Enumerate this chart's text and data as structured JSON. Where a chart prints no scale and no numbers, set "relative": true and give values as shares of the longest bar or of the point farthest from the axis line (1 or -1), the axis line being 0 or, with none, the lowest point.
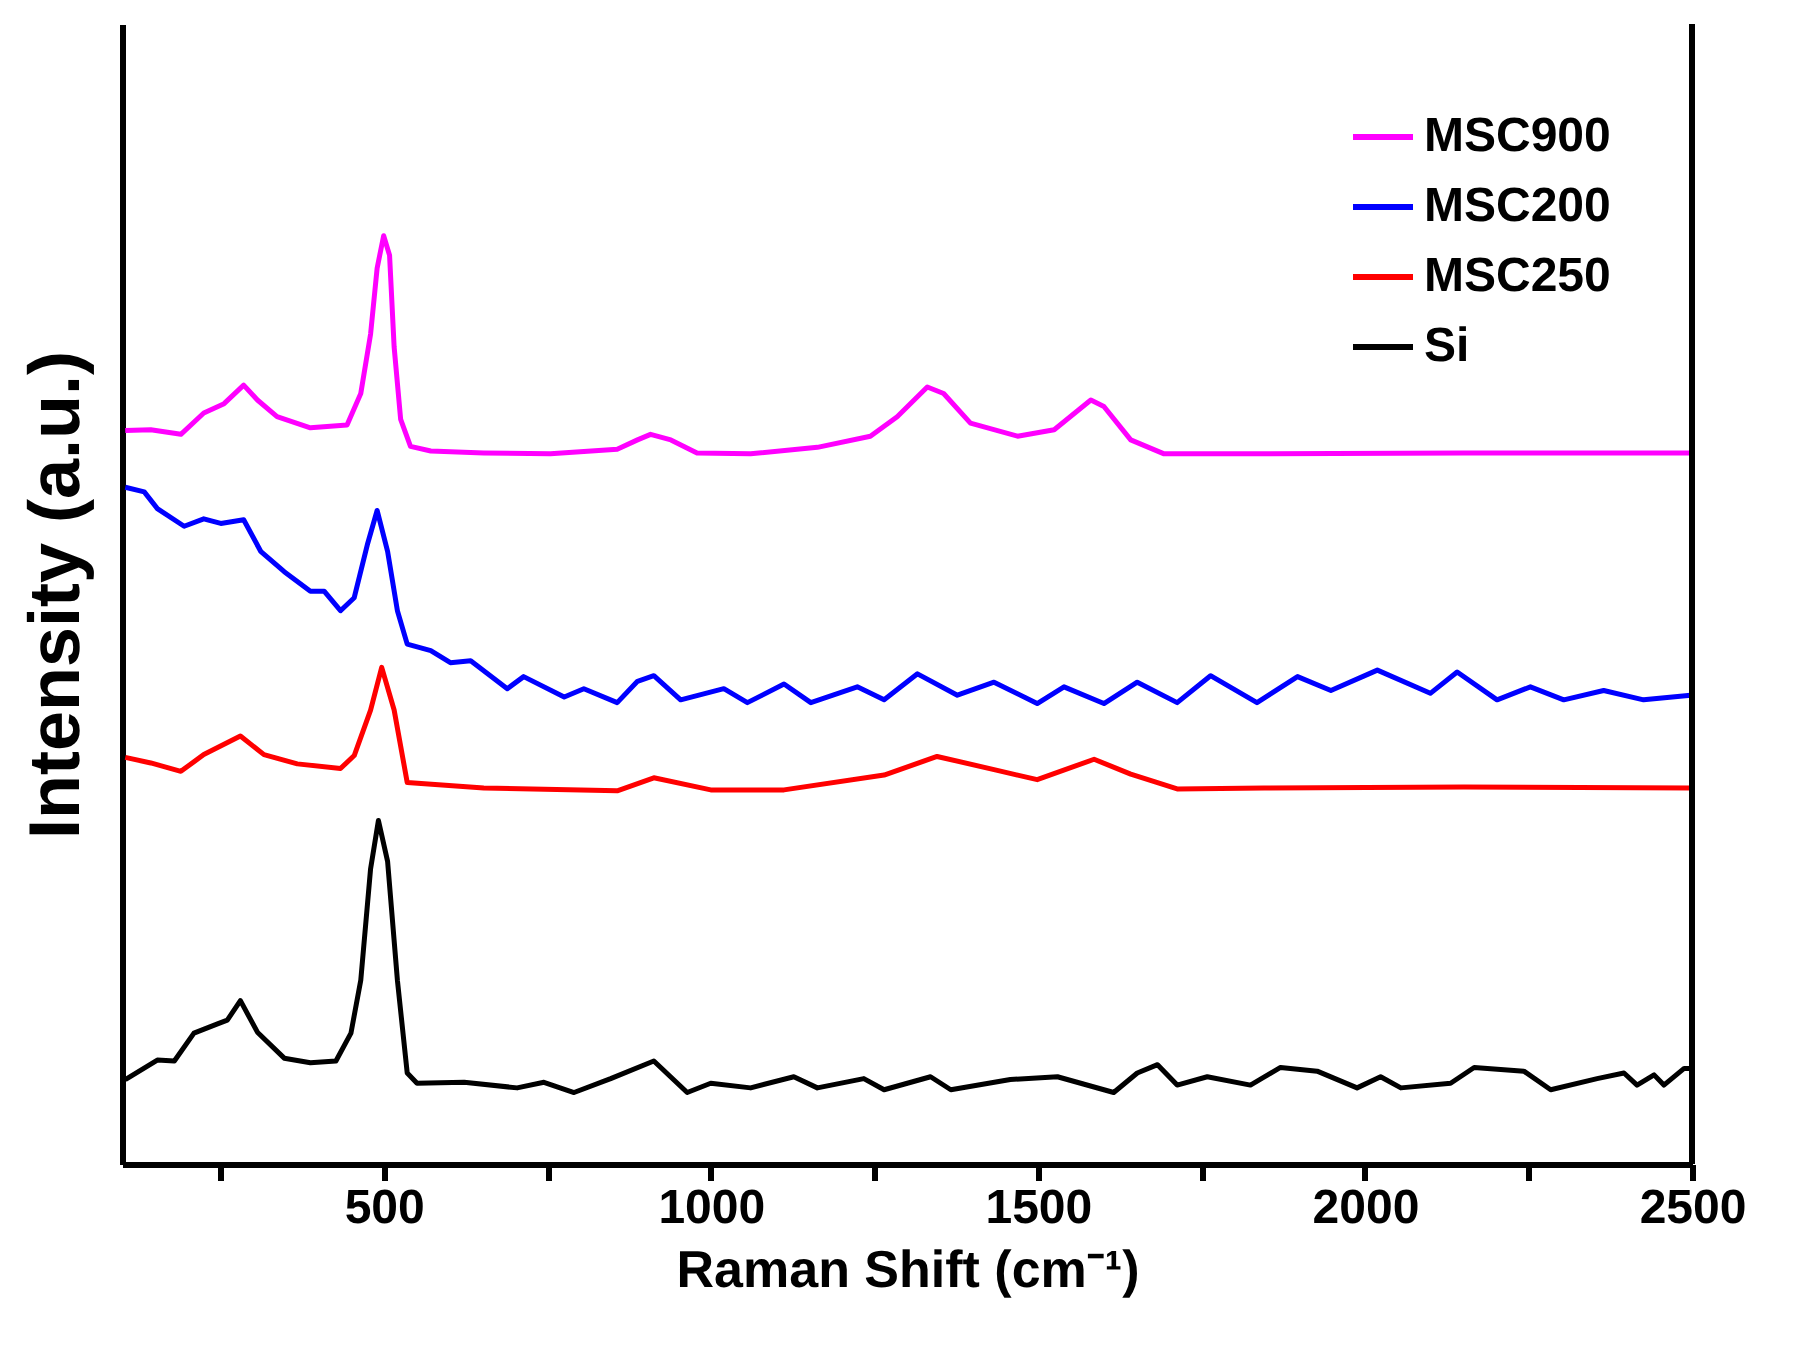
{
  "chart_data": {
    "type": "line",
    "xlabel": "Raman Shift (cm⁻¹)",
    "ylabel": "Intensity (a.u.)",
    "relative": true,
    "xlim": [
      100,
      2500
    ],
    "xticks": [
      {
        "value": 250,
        "label": null
      },
      500,
      {
        "value": 750,
        "label": null
      },
      1000,
      {
        "value": 1250,
        "label": null
      },
      1500,
      {
        "value": 1750,
        "label": null
      },
      2000,
      {
        "value": 2250,
        "label": null
      },
      2500
    ],
    "legend": "top right",
    "grid": false,
    "marker": "none",
    "line_style": "solid",
    "series": [
      {
        "name": "MSC900",
        "color": "#ff00ff",
        "x": [
          105,
          144,
          190,
          225,
          256,
          286,
          307,
          337,
          388,
          444,
          465,
          480,
          490,
          500,
          509,
          516,
          526,
          541,
          572,
          653,
          755,
          857,
          888,
          908,
          939,
          979,
          1061,
          1163,
          1244,
          1285,
          1331,
          1356,
          1397,
          1469,
          1525,
          1581,
          1601,
          1642,
          1693,
          1846,
          2151,
          2498
        ],
        "values": [
          0.79,
          0.791,
          0.786,
          0.809,
          0.819,
          0.839,
          0.823,
          0.805,
          0.793,
          0.796,
          0.83,
          0.894,
          0.965,
          1.0,
          0.979,
          0.88,
          0.802,
          0.773,
          0.768,
          0.766,
          0.765,
          0.77,
          0.78,
          0.786,
          0.78,
          0.766,
          0.765,
          0.772,
          0.784,
          0.805,
          0.837,
          0.83,
          0.798,
          0.784,
          0.791,
          0.823,
          0.816,
          0.78,
          0.765,
          0.765,
          0.766,
          0.766
        ]
      },
      {
        "name": "MSC200",
        "color": "#0000ff",
        "x": [
          105,
          134,
          154,
          195,
          225,
          251,
          286,
          312,
          348,
          388,
          409,
          434,
          455,
          475,
          490,
          506,
          521,
          536,
          572,
          602,
          633,
          689,
          714,
          776,
          806,
          857,
          888,
          913,
          954,
          1020,
          1056,
          1112,
          1153,
          1224,
          1265,
          1316,
          1377,
          1433,
          1499,
          1540,
          1601,
          1652,
          1713,
          1764,
          1835,
          1897,
          1948,
          2019,
          2100,
          2141,
          2202,
          2253,
          2304,
          2365,
          2426,
          2498
        ],
        "values": [
          0.729,
          0.724,
          0.706,
          0.687,
          0.695,
          0.69,
          0.694,
          0.66,
          0.638,
          0.617,
          0.617,
          0.596,
          0.61,
          0.667,
          0.704,
          0.66,
          0.596,
          0.56,
          0.553,
          0.54,
          0.542,
          0.512,
          0.525,
          0.503,
          0.512,
          0.497,
          0.52,
          0.526,
          0.5,
          0.512,
          0.497,
          0.517,
          0.497,
          0.514,
          0.5,
          0.528,
          0.505,
          0.519,
          0.496,
          0.514,
          0.496,
          0.519,
          0.497,
          0.526,
          0.497,
          0.525,
          0.51,
          0.532,
          0.507,
          0.53,
          0.5,
          0.514,
          0.5,
          0.51,
          0.5,
          0.505
        ]
      },
      {
        "name": "MSC250",
        "color": "#ff0000",
        "x": [
          105,
          144,
          190,
          225,
          281,
          317,
          368,
          434,
          455,
          480,
          497,
          516,
          536,
          653,
          857,
          913,
          1000,
          1112,
          1265,
          1346,
          1438,
          1499,
          1586,
          1642,
          1713,
          1846,
          2151,
          2498
        ],
        "values": [
          0.438,
          0.432,
          0.423,
          0.441,
          0.461,
          0.441,
          0.431,
          0.426,
          0.44,
          0.489,
          0.535,
          0.489,
          0.411,
          0.405,
          0.402,
          0.416,
          0.403,
          0.403,
          0.419,
          0.439,
          0.424,
          0.414,
          0.436,
          0.42,
          0.404,
          0.405,
          0.406,
          0.405
        ]
      },
      {
        "name": "Si",
        "color": "#000000",
        "x": [
          105,
          154,
          180,
          210,
          246,
          261,
          281,
          307,
          348,
          388,
          427,
          450,
          465,
          480,
          492,
          506,
          521,
          536,
          551,
          623,
          704,
          745,
          791,
          847,
          913,
          964,
          1000,
          1061,
          1127,
          1163,
          1234,
          1265,
          1336,
          1367,
          1458,
          1530,
          1616,
          1652,
          1683,
          1713,
          1759,
          1825,
          1871,
          1927,
          1988,
          2024,
          2055,
          2131,
          2167,
          2243,
          2284,
          2355,
          2396,
          2416,
          2442,
          2457,
          2488,
          2498
        ],
        "values": [
          0.091,
          0.112,
          0.111,
          0.141,
          0.151,
          0.155,
          0.176,
          0.142,
          0.114,
          0.109,
          0.111,
          0.141,
          0.198,
          0.318,
          0.37,
          0.326,
          0.198,
          0.098,
          0.087,
          0.088,
          0.082,
          0.088,
          0.077,
          0.092,
          0.111,
          0.077,
          0.087,
          0.082,
          0.094,
          0.082,
          0.092,
          0.08,
          0.094,
          0.08,
          0.091,
          0.094,
          0.077,
          0.098,
          0.107,
          0.085,
          0.094,
          0.085,
          0.104,
          0.1,
          0.082,
          0.094,
          0.082,
          0.087,
          0.104,
          0.1,
          0.08,
          0.092,
          0.098,
          0.085,
          0.096,
          0.085,
          0.103,
          0.103
        ]
      }
    ]
  }
}
